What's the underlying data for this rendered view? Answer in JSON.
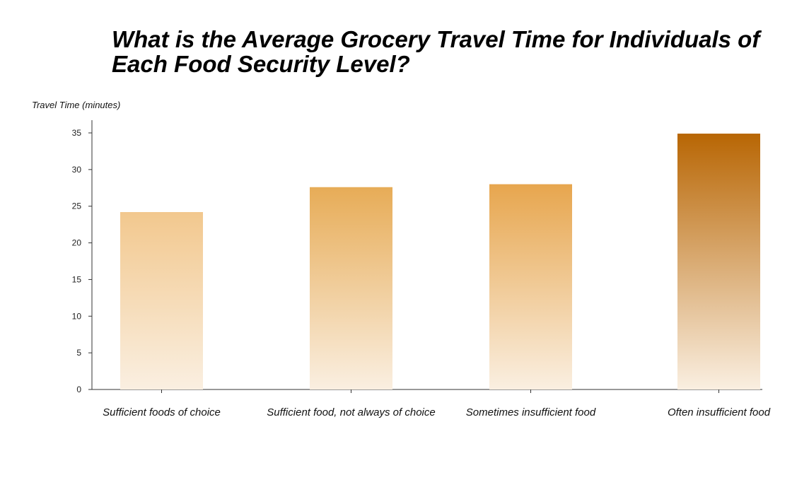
{
  "chart_data": {
    "type": "bar",
    "title": "What is the Average Grocery Travel Time for Individuals of Each Food Security Level?",
    "ylabel": "Travel Time (minutes)",
    "xlabel": "",
    "categories": [
      "Sufficient foods of choice",
      "Sufficient food, not always of choice",
      "Sometimes insufficient food",
      "Often insufficient food"
    ],
    "values": [
      24.2,
      27.6,
      28.0,
      34.9
    ],
    "ylim": [
      0,
      35
    ],
    "yticks": [
      0,
      5,
      10,
      15,
      20,
      25,
      30,
      35
    ],
    "grid": false,
    "legend": "none",
    "bar_colors": [
      {
        "top": "#f2c88e",
        "bottom": "#faefe1"
      },
      {
        "top": "#e7ac57",
        "bottom": "#faefe1"
      },
      {
        "top": "#e7a64e",
        "bottom": "#faefe1"
      },
      {
        "top": "#b86604",
        "bottom": "#faefe1"
      }
    ]
  }
}
